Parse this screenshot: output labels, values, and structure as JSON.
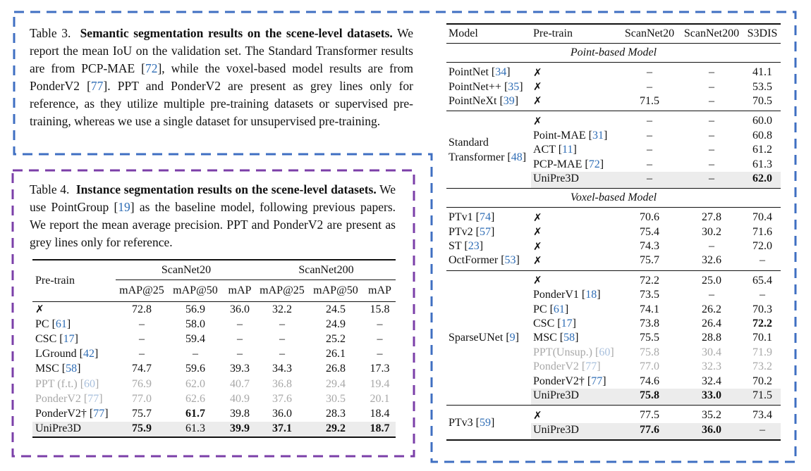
{
  "table3": {
    "label": "Table 3.",
    "title": "Semantic segmentation results on the scene-level datasets.",
    "caption_parts": [
      "We report the mean IoU on the validation set. The Standard Transformer results are from PCP-MAE [",
      "72",
      "], while the voxel-based model results are from PonderV2 [",
      "77",
      "]. PPT and PonderV2 are present as grey lines only for reference, as they utilize multiple pre-training datasets or supervised pre-training, whereas we use a single dataset for unsupervised pre-training."
    ],
    "columns": [
      "Model",
      "Pre-train",
      "ScanNet20",
      "ScanNet200",
      "S3DIS"
    ],
    "sections": {
      "point": "Point-based Model",
      "voxel": "Voxel-based Model"
    },
    "groups": [
      {
        "model": "",
        "rows": [
          {
            "model": "PointNet",
            "ref": "34",
            "pre": "✗",
            "pref": "",
            "v": [
              "–",
              "–",
              "41.1"
            ],
            "grey": false,
            "hl": false,
            "b": [
              false,
              false,
              false
            ]
          },
          {
            "model": "PointNet++",
            "ref": "35",
            "pre": "✗",
            "pref": "",
            "v": [
              "–",
              "–",
              "53.5"
            ],
            "grey": false,
            "hl": false,
            "b": [
              false,
              false,
              false
            ]
          },
          {
            "model": "PointNeXt",
            "ref": "39",
            "pre": "✗",
            "pref": "",
            "v": [
              "71.5",
              "–",
              "70.5"
            ],
            "grey": false,
            "hl": false,
            "b": [
              false,
              false,
              false
            ]
          }
        ]
      },
      {
        "model": "Standard Transformer",
        "ref": "48",
        "rows": [
          {
            "pre": "✗",
            "pref": "",
            "v": [
              "–",
              "–",
              "60.0"
            ],
            "grey": false,
            "hl": false,
            "b": [
              false,
              false,
              false
            ]
          },
          {
            "pre": "Point-MAE",
            "pref": "31",
            "v": [
              "–",
              "–",
              "60.8"
            ],
            "grey": false,
            "hl": false,
            "b": [
              false,
              false,
              false
            ]
          },
          {
            "pre": "ACT",
            "pref": "11",
            "v": [
              "–",
              "–",
              "61.2"
            ],
            "grey": false,
            "hl": false,
            "b": [
              false,
              false,
              false
            ]
          },
          {
            "pre": "PCP-MAE",
            "pref": "72",
            "v": [
              "–",
              "–",
              "61.3"
            ],
            "grey": false,
            "hl": false,
            "b": [
              false,
              false,
              false
            ]
          },
          {
            "pre": "UniPre3D",
            "pref": "",
            "v": [
              "–",
              "–",
              "62.0"
            ],
            "grey": false,
            "hl": true,
            "b": [
              false,
              false,
              true
            ]
          }
        ]
      },
      {
        "model": "",
        "rows": [
          {
            "model": "PTv1",
            "ref": "74",
            "pre": "✗",
            "pref": "",
            "v": [
              "70.6",
              "27.8",
              "70.4"
            ],
            "grey": false,
            "hl": false,
            "b": [
              false,
              false,
              false
            ]
          },
          {
            "model": "PTv2",
            "ref": "57",
            "pre": "✗",
            "pref": "",
            "v": [
              "75.4",
              "30.2",
              "71.6"
            ],
            "grey": false,
            "hl": false,
            "b": [
              false,
              false,
              false
            ]
          },
          {
            "model": "ST",
            "ref": "23",
            "pre": "✗",
            "pref": "",
            "v": [
              "74.3",
              "–",
              "72.0"
            ],
            "grey": false,
            "hl": false,
            "b": [
              false,
              false,
              false
            ]
          },
          {
            "model": "OctFormer",
            "ref": "53",
            "pre": "✗",
            "pref": "",
            "v": [
              "75.7",
              "32.6",
              "–"
            ],
            "grey": false,
            "hl": false,
            "b": [
              false,
              false,
              false
            ]
          }
        ]
      },
      {
        "model": "SparseUNet",
        "ref": "9",
        "rows": [
          {
            "pre": "✗",
            "pref": "",
            "v": [
              "72.2",
              "25.0",
              "65.4"
            ],
            "grey": false,
            "hl": false,
            "b": [
              false,
              false,
              false
            ]
          },
          {
            "pre": "PonderV1",
            "pref": "18",
            "v": [
              "73.5",
              "–",
              "–"
            ],
            "grey": false,
            "hl": false,
            "b": [
              false,
              false,
              false
            ]
          },
          {
            "pre": "PC",
            "pref": "61",
            "v": [
              "74.1",
              "26.2",
              "70.3"
            ],
            "grey": false,
            "hl": false,
            "b": [
              false,
              false,
              false
            ]
          },
          {
            "pre": "CSC",
            "pref": "17",
            "v": [
              "73.8",
              "26.4",
              "72.2"
            ],
            "grey": false,
            "hl": false,
            "b": [
              false,
              false,
              true
            ]
          },
          {
            "pre": "MSC",
            "pref": "58",
            "v": [
              "75.5",
              "28.8",
              "70.1"
            ],
            "grey": false,
            "hl": false,
            "b": [
              false,
              false,
              false
            ]
          },
          {
            "pre": "PPT(Unsup.)",
            "pref": "60",
            "v": [
              "75.8",
              "30.4",
              "71.9"
            ],
            "grey": true,
            "hl": false,
            "b": [
              false,
              false,
              false
            ]
          },
          {
            "pre": "PonderV2",
            "pref": "77",
            "v": [
              "77.0",
              "32.3",
              "73.2"
            ],
            "grey": true,
            "hl": false,
            "b": [
              false,
              false,
              false
            ]
          },
          {
            "pre": "PonderV2†",
            "pref": "77",
            "v": [
              "74.6",
              "32.4",
              "70.2"
            ],
            "grey": false,
            "hl": false,
            "b": [
              false,
              false,
              false
            ]
          },
          {
            "pre": "UniPre3D",
            "pref": "",
            "v": [
              "75.8",
              "33.0",
              "71.5"
            ],
            "grey": false,
            "hl": true,
            "b": [
              true,
              true,
              false
            ]
          }
        ]
      },
      {
        "model": "PTv3",
        "ref": "59",
        "rows": [
          {
            "pre": "✗",
            "pref": "",
            "v": [
              "77.5",
              "35.2",
              "73.4"
            ],
            "grey": false,
            "hl": false,
            "b": [
              false,
              false,
              false
            ]
          },
          {
            "pre": "UniPre3D",
            "pref": "",
            "v": [
              "77.6",
              "36.0",
              "–"
            ],
            "grey": false,
            "hl": true,
            "b": [
              true,
              true,
              false
            ]
          }
        ]
      }
    ]
  },
  "table4": {
    "label": "Table 4.",
    "title": "Instance segmentation results on the scene-level datasets.",
    "caption_parts": [
      "We use PointGroup [",
      "19",
      "] as the baseline model, following previous papers. We report the mean average precision. PPT and PonderV2 are present as grey lines only for reference."
    ],
    "header": {
      "pretrain": "Pre-train",
      "group1": "ScanNet20",
      "group2": "ScanNet200",
      "sub": [
        "mAP@25",
        "mAP@50",
        "mAP",
        "mAP@25",
        "mAP@50",
        "mAP"
      ]
    },
    "rows": [
      {
        "pre": "✗",
        "ref": "",
        "v": [
          "72.8",
          "56.9",
          "36.0",
          "32.2",
          "24.5",
          "15.8"
        ],
        "grey": false,
        "hl": false,
        "b": [
          false,
          false,
          false,
          false,
          false,
          false
        ]
      },
      {
        "pre": "PC",
        "ref": "61",
        "v": [
          "–",
          "58.0",
          "–",
          "–",
          "24.9",
          "–"
        ],
        "grey": false,
        "hl": false,
        "b": [
          false,
          false,
          false,
          false,
          false,
          false
        ]
      },
      {
        "pre": "CSC",
        "ref": "17",
        "v": [
          "–",
          "59.4",
          "–",
          "–",
          "25.2",
          "–"
        ],
        "grey": false,
        "hl": false,
        "b": [
          false,
          false,
          false,
          false,
          false,
          false
        ]
      },
      {
        "pre": "LGround",
        "ref": "42",
        "v": [
          "–",
          "–",
          "–",
          "–",
          "26.1",
          "–"
        ],
        "grey": false,
        "hl": false,
        "b": [
          false,
          false,
          false,
          false,
          false,
          false
        ]
      },
      {
        "pre": "MSC",
        "ref": "58",
        "v": [
          "74.7",
          "59.6",
          "39.3",
          "34.3",
          "26.8",
          "17.3"
        ],
        "grey": false,
        "hl": false,
        "b": [
          false,
          false,
          false,
          false,
          false,
          false
        ]
      },
      {
        "pre": "PPT (f.t.)",
        "ref": "60",
        "v": [
          "76.9",
          "62.0",
          "40.7",
          "36.8",
          "29.4",
          "19.4"
        ],
        "grey": true,
        "hl": false,
        "b": [
          false,
          false,
          false,
          false,
          false,
          false
        ]
      },
      {
        "pre": "PonderV2",
        "ref": "77",
        "v": [
          "77.0",
          "62.6",
          "40.9",
          "37.6",
          "30.5",
          "20.1"
        ],
        "grey": true,
        "hl": false,
        "b": [
          false,
          false,
          false,
          false,
          false,
          false
        ]
      },
      {
        "pre": "PonderV2†",
        "ref": "77",
        "v": [
          "75.7",
          "61.7",
          "39.8",
          "36.0",
          "28.3",
          "18.4"
        ],
        "grey": false,
        "hl": false,
        "b": [
          false,
          true,
          false,
          false,
          false,
          false
        ]
      },
      {
        "pre": "UniPre3D",
        "ref": "",
        "v": [
          "75.9",
          "61.3",
          "39.9",
          "37.1",
          "29.2",
          "18.7"
        ],
        "grey": false,
        "hl": true,
        "b": [
          true,
          false,
          true,
          true,
          true,
          true
        ]
      }
    ]
  },
  "colors": {
    "blue_frame": "#3f6fc2",
    "purple_frame": "#7b3fa8",
    "citation": "#2f6db5",
    "grey_text": "#a8a8a8",
    "highlight": "#ececec"
  }
}
